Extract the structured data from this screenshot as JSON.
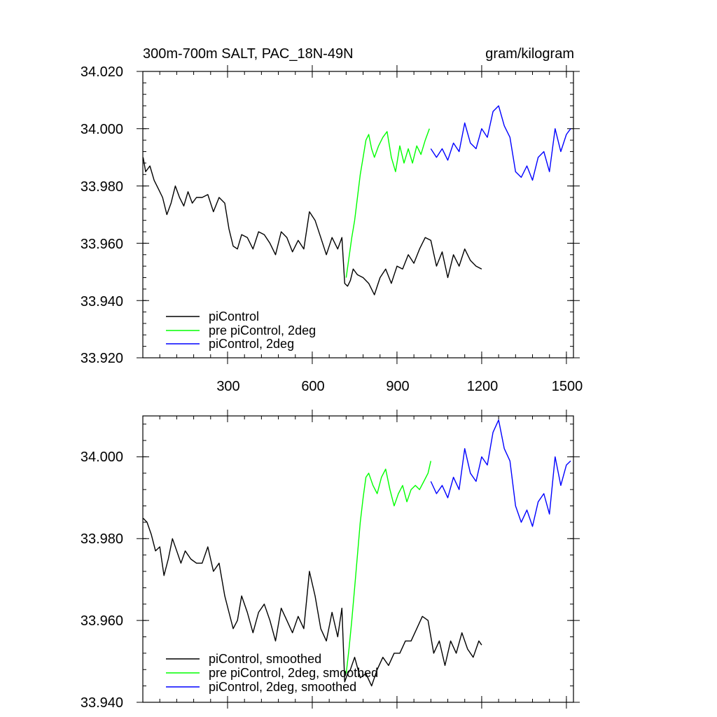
{
  "chart_data": [
    {
      "type": "line",
      "title": "300m-700m SALT, PAC_18N-49N",
      "units": "gram/kilogram",
      "xlim": [
        0,
        1525
      ],
      "ylim": [
        33.92,
        34.02
      ],
      "xticks": [
        300,
        600,
        900,
        1200,
        1500
      ],
      "xtick_labels": [
        "300",
        "600",
        "900",
        "1200",
        "1500"
      ],
      "yticks": [
        33.92,
        33.94,
        33.96,
        33.98,
        34.0,
        34.02
      ],
      "ytick_labels": [
        "33.920",
        "33.940",
        "33.960",
        "33.980",
        "34.000",
        "34.020"
      ],
      "legend_position": "bottom-left",
      "series": [
        {
          "name": "piControl",
          "color": "#000000",
          "x": [
            1,
            10,
            25,
            40,
            55,
            70,
            85,
            100,
            115,
            130,
            145,
            160,
            175,
            190,
            210,
            230,
            250,
            270,
            290,
            305,
            320,
            335,
            350,
            370,
            390,
            410,
            430,
            450,
            470,
            490,
            510,
            530,
            550,
            570,
            590,
            610,
            630,
            650,
            670,
            690,
            705,
            715,
            725,
            735,
            745,
            760,
            780,
            800,
            820,
            840,
            860,
            880,
            900,
            920,
            940,
            960,
            980,
            1000,
            1020,
            1040,
            1060,
            1080,
            1100,
            1120,
            1140,
            1160,
            1180,
            1200
          ],
          "y": [
            33.99,
            33.985,
            33.987,
            33.982,
            33.979,
            33.976,
            33.97,
            33.974,
            33.98,
            33.976,
            33.973,
            33.978,
            33.974,
            33.976,
            33.976,
            33.977,
            33.971,
            33.976,
            33.974,
            33.965,
            33.959,
            33.958,
            33.963,
            33.962,
            33.958,
            33.964,
            33.963,
            33.96,
            33.956,
            33.964,
            33.962,
            33.957,
            33.961,
            33.958,
            33.971,
            33.968,
            33.962,
            33.956,
            33.962,
            33.958,
            33.962,
            33.946,
            33.945,
            33.947,
            33.951,
            33.949,
            33.948,
            33.946,
            33.942,
            33.948,
            33.951,
            33.946,
            33.952,
            33.951,
            33.956,
            33.953,
            33.958,
            33.962,
            33.961,
            33.952,
            33.957,
            33.948,
            33.956,
            33.952,
            33.958,
            33.954,
            33.952,
            33.951
          ]
        },
        {
          "name": "pre piControl, 2deg",
          "color": "#00ff00",
          "x": [
            720,
            730,
            740,
            750,
            760,
            770,
            780,
            790,
            800,
            810,
            820,
            835,
            850,
            865,
            880,
            895,
            910,
            925,
            940,
            955,
            970,
            985,
            1000,
            1015
          ],
          "y": [
            33.948,
            33.955,
            33.962,
            33.968,
            33.976,
            33.984,
            33.99,
            33.996,
            33.998,
            33.993,
            33.99,
            33.994,
            33.997,
            33.999,
            33.99,
            33.985,
            33.994,
            33.988,
            33.993,
            33.988,
            33.994,
            33.991,
            33.996,
            34.0
          ]
        },
        {
          "name": "piControl, 2deg",
          "color": "#0000ff",
          "x": [
            1020,
            1040,
            1060,
            1080,
            1100,
            1120,
            1140,
            1160,
            1180,
            1200,
            1220,
            1240,
            1260,
            1280,
            1300,
            1320,
            1340,
            1360,
            1380,
            1400,
            1420,
            1440,
            1460,
            1480,
            1500,
            1515
          ],
          "y": [
            33.993,
            33.99,
            33.993,
            33.989,
            33.995,
            33.992,
            34.002,
            33.995,
            33.993,
            34.0,
            33.997,
            34.006,
            34.008,
            34.001,
            33.997,
            33.985,
            33.983,
            33.987,
            33.982,
            33.99,
            33.992,
            33.985,
            34.0,
            33.992,
            33.998,
            34.0
          ]
        }
      ]
    },
    {
      "type": "line",
      "xlim": [
        0,
        1525
      ],
      "ylim": [
        33.94,
        34.01
      ],
      "yticks": [
        33.94,
        33.96,
        33.98,
        34.0
      ],
      "ytick_labels": [
        "33.940",
        "33.960",
        "33.980",
        "34.000"
      ],
      "legend_position": "bottom-left",
      "series": [
        {
          "name": "piControl, smoothed",
          "color": "#000000",
          "x": [
            1,
            15,
            30,
            45,
            60,
            75,
            90,
            105,
            120,
            135,
            150,
            170,
            190,
            210,
            230,
            250,
            270,
            290,
            305,
            320,
            335,
            350,
            370,
            390,
            410,
            430,
            450,
            470,
            490,
            510,
            530,
            550,
            570,
            590,
            610,
            630,
            650,
            670,
            690,
            705,
            715,
            725,
            735,
            750,
            770,
            790,
            810,
            830,
            850,
            870,
            890,
            910,
            930,
            950,
            970,
            990,
            1010,
            1030,
            1050,
            1070,
            1090,
            1110,
            1130,
            1150,
            1170,
            1190,
            1200
          ],
          "y": [
            33.985,
            33.984,
            33.981,
            33.977,
            33.978,
            33.971,
            33.975,
            33.98,
            33.977,
            33.974,
            33.977,
            33.975,
            33.974,
            33.974,
            33.978,
            33.972,
            33.974,
            33.966,
            33.962,
            33.958,
            33.96,
            33.966,
            33.962,
            33.957,
            33.962,
            33.964,
            33.96,
            33.955,
            33.963,
            33.96,
            33.957,
            33.961,
            33.958,
            33.972,
            33.966,
            33.958,
            33.955,
            33.962,
            33.956,
            33.963,
            33.945,
            33.947,
            33.948,
            33.951,
            33.946,
            33.947,
            33.944,
            33.948,
            33.951,
            33.949,
            33.952,
            33.952,
            33.955,
            33.955,
            33.958,
            33.961,
            33.96,
            33.952,
            33.955,
            33.949,
            33.955,
            33.952,
            33.957,
            33.953,
            33.951,
            33.955,
            33.954
          ]
        },
        {
          "name": "pre piControl, 2deg, smoothed",
          "color": "#00ff00",
          "x": [
            720,
            730,
            740,
            750,
            760,
            770,
            780,
            790,
            800,
            815,
            830,
            845,
            860,
            875,
            890,
            905,
            920,
            935,
            950,
            965,
            980,
            995,
            1010,
            1020
          ],
          "y": [
            33.947,
            33.953,
            33.96,
            33.968,
            33.976,
            33.984,
            33.99,
            33.995,
            33.996,
            33.993,
            33.991,
            33.995,
            33.997,
            33.992,
            33.988,
            33.991,
            33.993,
            33.989,
            33.992,
            33.993,
            33.992,
            33.994,
            33.996,
            33.999
          ]
        },
        {
          "name": "piControl, 2deg, smoothed",
          "color": "#0000ff",
          "x": [
            1020,
            1040,
            1060,
            1080,
            1100,
            1120,
            1140,
            1160,
            1180,
            1200,
            1220,
            1240,
            1260,
            1280,
            1300,
            1320,
            1340,
            1360,
            1380,
            1400,
            1420,
            1440,
            1460,
            1480,
            1500,
            1515
          ],
          "y": [
            33.994,
            33.991,
            33.993,
            33.99,
            33.995,
            33.992,
            34.002,
            33.996,
            33.994,
            34.0,
            33.998,
            34.006,
            34.009,
            34.002,
            33.999,
            33.988,
            33.984,
            33.987,
            33.983,
            33.989,
            33.991,
            33.986,
            34.0,
            33.993,
            33.998,
            33.999
          ]
        }
      ]
    }
  ]
}
